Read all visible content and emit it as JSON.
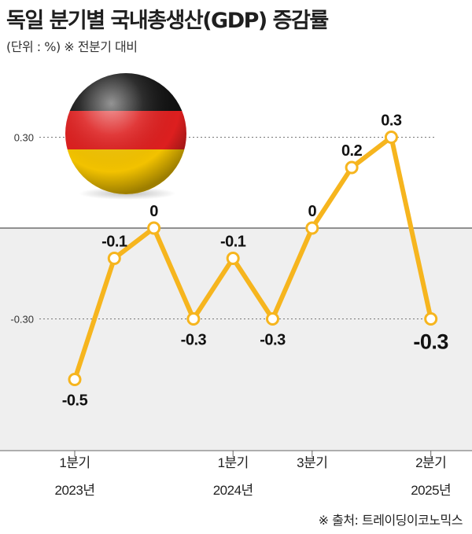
{
  "header": {
    "title": "독일 분기별 국내총생산(GDP) 증감률",
    "subtitle": "(단위 : %) ※ 전분기 대비"
  },
  "source": "※ 출처: 트레이딩이코노믹스",
  "colors": {
    "line": "#f6b51e",
    "negative_band": "#efefef",
    "zero_line": "#555555",
    "flag_black": "#111111",
    "flag_red": "#dd1f1f",
    "flag_gold": "#f2c200"
  },
  "icons": {
    "flag": "germany-flag-sphere-icon"
  },
  "chart_data": {
    "type": "line",
    "title": "독일 분기별 국내총생산(GDP) 증감률",
    "unit": "%",
    "y_ticks": [
      {
        "value": 0.3,
        "label": "0.30"
      },
      {
        "value": -0.3,
        "label": "-0.30"
      }
    ],
    "ylim": [
      -0.6,
      0.6
    ],
    "x_labels": [
      {
        "index": 0,
        "line1": "1분기",
        "line2": "2023년"
      },
      {
        "index": 4,
        "line1": "1분기",
        "line2": "2024년"
      },
      {
        "index": 6,
        "line1": "3분기",
        "line2": ""
      },
      {
        "index": 9,
        "line1": "2분기",
        "line2": "2025년"
      }
    ],
    "series": [
      {
        "values": [
          -0.5,
          -0.1,
          0,
          -0.3,
          -0.1,
          -0.3,
          0,
          0.2,
          0.3,
          -0.3
        ],
        "labels": [
          "-0.5",
          "-0.1",
          "0",
          "-0.3",
          "-0.1",
          "-0.3",
          "0",
          "0.2",
          "0.3",
          "-0.3"
        ]
      }
    ]
  }
}
